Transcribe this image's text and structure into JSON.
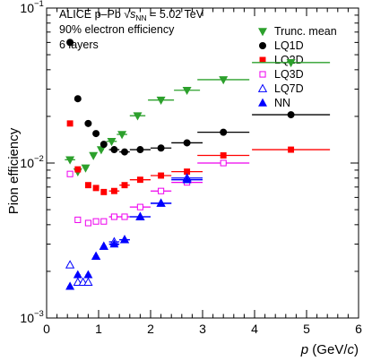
{
  "chart_data": {
    "type": "scatter",
    "header": {
      "line1_prefix": "ALICE p–Pb ",
      "line1_sqrt": "√",
      "line1_s": "s",
      "line1_sub": "NN",
      "line1_suffix": " = 5.02 TeV",
      "line2": "90% electron efficiency",
      "line3": "6 layers"
    },
    "xlabel_var": "p",
    "xlabel_open": " (GeV/",
    "xlabel_c": "c",
    "xlabel_close": ")",
    "ylabel": "Pion efficiency",
    "xlim": [
      0,
      6
    ],
    "ylim": [
      0.001,
      0.1
    ],
    "y_log": true,
    "x_ticks": [
      "0",
      "1",
      "2",
      "3",
      "4",
      "5",
      "6"
    ],
    "y_ticks": [
      {
        "base": "10",
        "exp": "−3",
        "value": 0.001
      },
      {
        "base": "10",
        "exp": "−2",
        "value": 0.01
      },
      {
        "base": "10",
        "exp": "−1",
        "value": 0.1
      }
    ],
    "legend_position": "top-right",
    "grid": false,
    "series": [
      {
        "name": "Trunc. mean",
        "marker": "triangle-down",
        "filled": true,
        "color": "#2ca02c",
        "points": [
          {
            "x": 0.45,
            "xerr": 0.1,
            "y": 0.0105
          },
          {
            "x": 0.6,
            "xerr": 0.05,
            "y": 0.0088
          },
          {
            "x": 0.75,
            "xerr": 0.05,
            "y": 0.0093
          },
          {
            "x": 0.9,
            "xerr": 0.05,
            "y": 0.0112
          },
          {
            "x": 1.05,
            "xerr": 0.05,
            "y": 0.0122
          },
          {
            "x": 1.25,
            "xerr": 0.1,
            "y": 0.0138
          },
          {
            "x": 1.45,
            "xerr": 0.1,
            "y": 0.0153
          },
          {
            "x": 1.75,
            "xerr": 0.15,
            "y": 0.0202
          },
          {
            "x": 2.2,
            "xerr": 0.25,
            "y": 0.0255
          },
          {
            "x": 2.7,
            "xerr": 0.25,
            "y": 0.0295
          },
          {
            "x": 3.4,
            "xerr": 0.5,
            "y": 0.0345
          },
          {
            "x": 4.7,
            "xerr": 0.75,
            "y": 0.0445
          }
        ]
      },
      {
        "name": "LQ1D",
        "marker": "circle",
        "filled": true,
        "color": "#000000",
        "points": [
          {
            "x": 0.45,
            "xerr": 0.05,
            "y": 0.06
          },
          {
            "x": 0.6,
            "xerr": 0.05,
            "y": 0.026
          },
          {
            "x": 0.8,
            "xerr": 0.05,
            "y": 0.018
          },
          {
            "x": 0.95,
            "xerr": 0.05,
            "y": 0.0155
          },
          {
            "x": 1.1,
            "xerr": 0.05,
            "y": 0.0132
          },
          {
            "x": 1.3,
            "xerr": 0.1,
            "y": 0.0122
          },
          {
            "x": 1.5,
            "xerr": 0.1,
            "y": 0.0118
          },
          {
            "x": 1.8,
            "xerr": 0.2,
            "y": 0.0122
          },
          {
            "x": 2.2,
            "xerr": 0.2,
            "y": 0.0125
          },
          {
            "x": 2.7,
            "xerr": 0.3,
            "y": 0.0135
          },
          {
            "x": 3.4,
            "xerr": 0.5,
            "y": 0.0158
          },
          {
            "x": 4.7,
            "xerr": 0.75,
            "y": 0.0205
          }
        ]
      },
      {
        "name": "LQ2D",
        "marker": "square",
        "filled": true,
        "color": "#ff0000",
        "points": [
          {
            "x": 0.45,
            "xerr": 0.05,
            "y": 0.018
          },
          {
            "x": 0.6,
            "xerr": 0.05,
            "y": 0.0091
          },
          {
            "x": 0.8,
            "xerr": 0.05,
            "y": 0.0072
          },
          {
            "x": 0.95,
            "xerr": 0.05,
            "y": 0.0069
          },
          {
            "x": 1.1,
            "xerr": 0.05,
            "y": 0.0065
          },
          {
            "x": 1.3,
            "xerr": 0.1,
            "y": 0.0066
          },
          {
            "x": 1.5,
            "xerr": 0.1,
            "y": 0.0072
          },
          {
            "x": 1.8,
            "xerr": 0.2,
            "y": 0.0078
          },
          {
            "x": 2.2,
            "xerr": 0.2,
            "y": 0.0083
          },
          {
            "x": 2.7,
            "xerr": 0.3,
            "y": 0.0088
          },
          {
            "x": 3.4,
            "xerr": 0.5,
            "y": 0.0112
          },
          {
            "x": 4.7,
            "xerr": 0.75,
            "y": 0.0122
          }
        ]
      },
      {
        "name": "LQ3D",
        "marker": "square",
        "filled": false,
        "color": "#ee00ee",
        "points": [
          {
            "x": 0.45,
            "xerr": 0.05,
            "y": 0.0085
          },
          {
            "x": 0.6,
            "xerr": 0.05,
            "y": 0.0043
          },
          {
            "x": 0.8,
            "xerr": 0.05,
            "y": 0.0041
          },
          {
            "x": 0.95,
            "xerr": 0.05,
            "y": 0.0042
          },
          {
            "x": 1.1,
            "xerr": 0.05,
            "y": 0.0042
          },
          {
            "x": 1.3,
            "xerr": 0.1,
            "y": 0.0045
          },
          {
            "x": 1.5,
            "xerr": 0.1,
            "y": 0.0045
          },
          {
            "x": 1.8,
            "xerr": 0.2,
            "y": 0.0052
          },
          {
            "x": 2.2,
            "xerr": 0.2,
            "y": 0.0066
          },
          {
            "x": 2.7,
            "xerr": 0.3,
            "y": 0.0075
          },
          {
            "x": 3.4,
            "xerr": 0.5,
            "y": 0.01
          }
        ]
      },
      {
        "name": "LQ7D",
        "marker": "triangle-up",
        "filled": false,
        "color": "#0000ff",
        "points": [
          {
            "x": 0.45,
            "xerr": 0.05,
            "y": 0.0022
          },
          {
            "x": 0.6,
            "xerr": 0.05,
            "y": 0.0017
          },
          {
            "x": 0.7,
            "xerr": 0.05,
            "y": 0.0017
          },
          {
            "x": 0.8,
            "xerr": 0.05,
            "y": 0.0017
          },
          {
            "x": 0.95,
            "xerr": 0.05,
            "y": 0.0025
          },
          {
            "x": 1.1,
            "xerr": 0.05,
            "y": 0.0029
          },
          {
            "x": 1.3,
            "xerr": 0.1,
            "y": 0.0031
          },
          {
            "x": 1.5,
            "xerr": 0.1,
            "y": 0.0032
          },
          {
            "x": 1.8,
            "xerr": 0.2,
            "y": 0.0045
          },
          {
            "x": 2.2,
            "xerr": 0.2,
            "y": 0.0055
          },
          {
            "x": 2.7,
            "xerr": 0.3,
            "y": 0.008
          }
        ]
      },
      {
        "name": "NN",
        "marker": "triangle-up",
        "filled": true,
        "color": "#0000ff",
        "points": [
          {
            "x": 0.45,
            "xerr": 0.05,
            "y": 0.0016
          },
          {
            "x": 0.6,
            "xerr": 0.05,
            "y": 0.0019
          },
          {
            "x": 0.8,
            "xerr": 0.05,
            "y": 0.0019
          },
          {
            "x": 0.95,
            "xerr": 0.05,
            "y": 0.0025
          },
          {
            "x": 1.1,
            "xerr": 0.05,
            "y": 0.0029
          },
          {
            "x": 1.3,
            "xerr": 0.1,
            "y": 0.003
          },
          {
            "x": 1.5,
            "xerr": 0.1,
            "y": 0.0032
          },
          {
            "x": 1.8,
            "xerr": 0.2,
            "y": 0.0045
          },
          {
            "x": 2.2,
            "xerr": 0.2,
            "y": 0.0055
          },
          {
            "x": 2.7,
            "xerr": 0.3,
            "y": 0.0078
          }
        ]
      }
    ]
  }
}
